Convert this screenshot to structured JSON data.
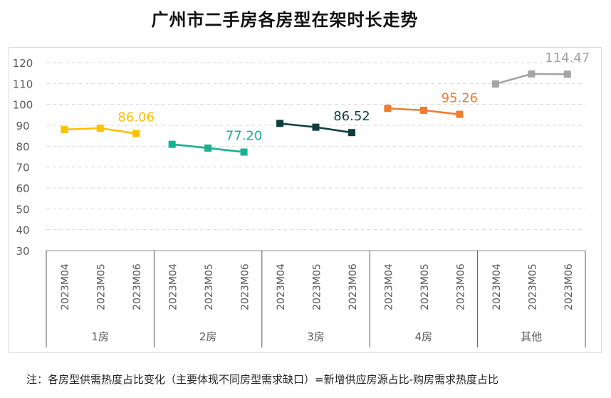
{
  "title": "广州市二手房各房型在架时长走势",
  "note": "注：各房型供需热度占比变化（主要体现不同房型需求缺口）=新增供应房源占比-购房需求热度占比",
  "chart_data": {
    "type": "line",
    "title": "广州市二手房各房型在架时长走势",
    "ylim": [
      30,
      120
    ],
    "yticks": [
      30,
      40,
      50,
      60,
      70,
      80,
      90,
      100,
      110,
      120
    ],
    "grid": true,
    "months": [
      "2023M04",
      "2023M05",
      "2023M06"
    ],
    "groups": [
      {
        "name": "1房",
        "color": "#ffc000",
        "values": [
          88.0,
          88.6,
          86.06
        ],
        "label": "86.06"
      },
      {
        "name": "2房",
        "color": "#19b092",
        "values": [
          80.9,
          79.1,
          77.2
        ],
        "label": "77.20"
      },
      {
        "name": "3房",
        "color": "#0f3d3e",
        "values": [
          90.9,
          89.1,
          86.52
        ],
        "label": "86.52"
      },
      {
        "name": "4房",
        "color": "#ed7d31",
        "values": [
          98.1,
          97.2,
          95.26
        ],
        "label": "95.26"
      },
      {
        "name": "其他",
        "color": "#a5a5a5",
        "values": [
          109.8,
          114.6,
          114.47
        ],
        "label": "114.47"
      }
    ]
  }
}
